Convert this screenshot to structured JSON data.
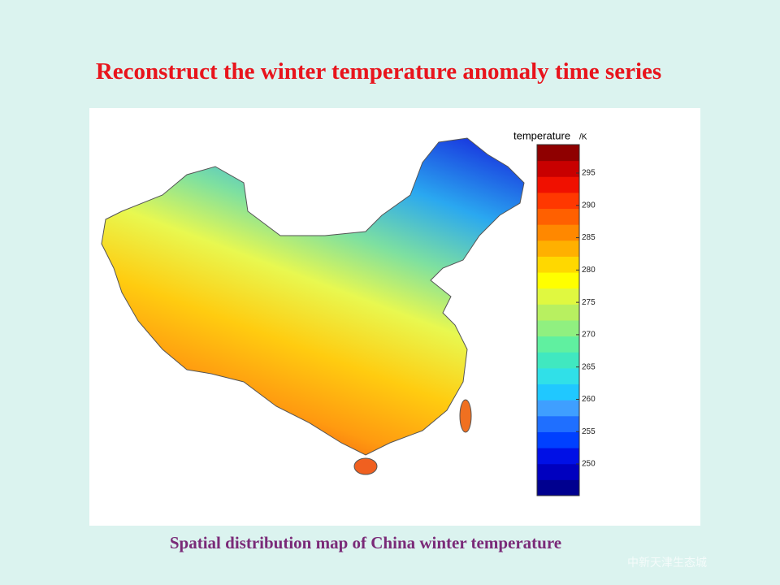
{
  "slide": {
    "title": "Reconstruct the winter temperature anomaly time series",
    "caption": "Spatial distribution map of China winter temperature",
    "watermark": "中新天津生态城"
  },
  "map": {
    "colorbar": {
      "label": "temperature",
      "unit": "/K",
      "lim": [
        245.1,
        299.4
      ],
      "ticks": [
        250,
        255,
        260,
        265,
        270,
        275,
        280,
        285,
        290,
        295
      ],
      "colors": [
        "#00008f",
        "#0000bf",
        "#0010e6",
        "#0040ff",
        "#1f6fff",
        "#3f9fff",
        "#20c8ff",
        "#30e0e8",
        "#40e8c0",
        "#60f0a0",
        "#90f080",
        "#b8f060",
        "#e0f840",
        "#ffff00",
        "#ffd800",
        "#ffb000",
        "#ff8800",
        "#ff6000",
        "#ff3800",
        "#f01000",
        "#c80000",
        "#8f0000"
      ]
    }
  }
}
